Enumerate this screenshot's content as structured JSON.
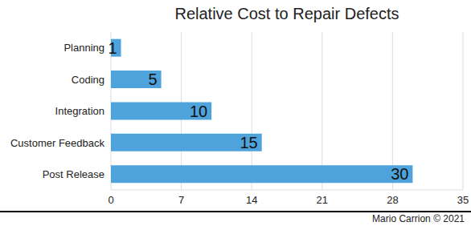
{
  "chart_data": {
    "type": "bar",
    "title": "Relative Cost to Repair Defects",
    "categories": [
      "Planning",
      "Coding",
      "Integration",
      "Customer Feedback",
      "Post Release"
    ],
    "values": [
      1,
      5,
      10,
      15,
      30
    ],
    "color": "#4ea3dc",
    "xlim": [
      0,
      35
    ],
    "xticks": [
      0,
      7,
      14,
      21,
      28,
      35
    ],
    "grid": true,
    "orientation": "horizontal",
    "data_labels": true,
    "caption": "Mario Carrion © 2021"
  }
}
